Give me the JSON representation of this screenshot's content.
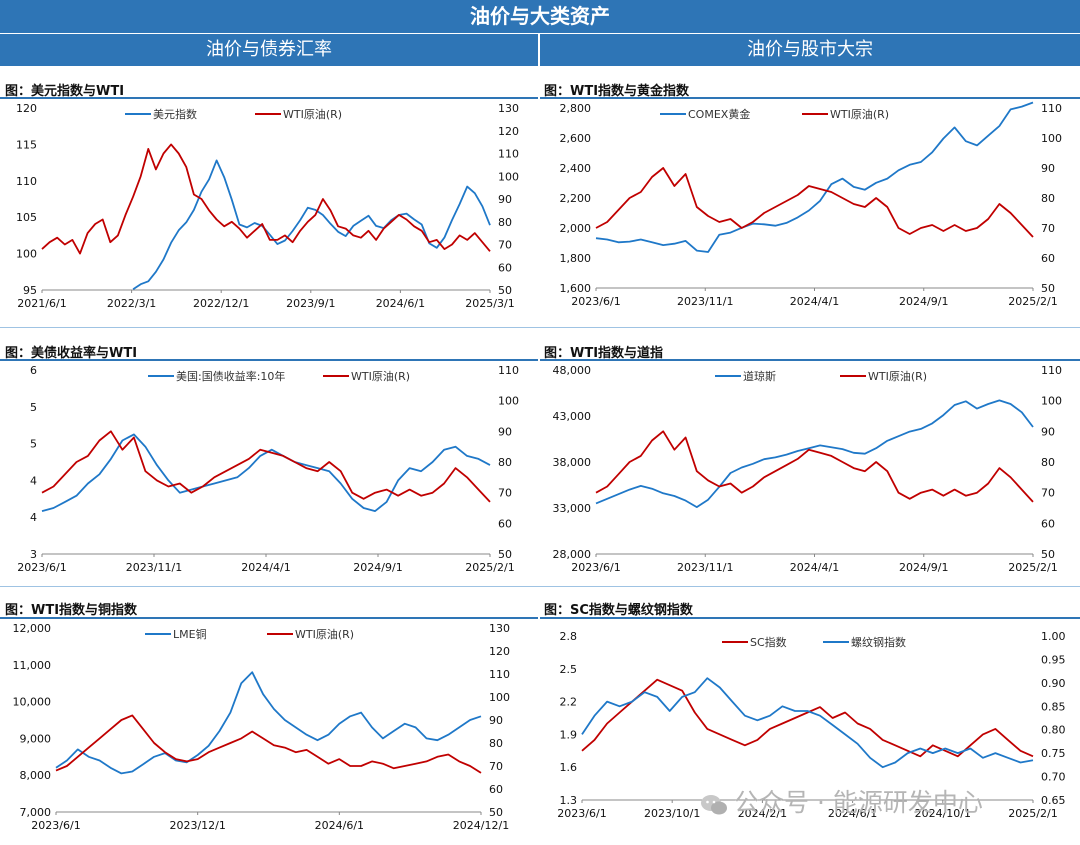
{
  "banner": "油价与大类资产",
  "sections": {
    "left": "油价与债券汇率",
    "right": "油价与股市大宗"
  },
  "watermark": "公众号 · 能源研发中心",
  "colors": {
    "header": "#2e75b6",
    "blue_series": "#1f78c8",
    "red_series": "#c00000"
  },
  "chart_data": [
    {
      "type": "line",
      "title": "图：美元指数与WTI",
      "x_tick_labels": [
        "2021/6/1",
        "2022/3/1",
        "2022/12/1",
        "2023/9/1",
        "2024/6/1",
        "2025/3/1"
      ],
      "y_left": {
        "range": [
          95,
          120
        ],
        "ticks": [
          "95",
          "100",
          "105",
          "110",
          "115",
          "120"
        ]
      },
      "y_right": {
        "range": [
          50,
          130
        ],
        "ticks": [
          "50",
          "60",
          "70",
          "80",
          "90",
          "100",
          "110",
          "120",
          "130"
        ]
      },
      "series": [
        {
          "name": "美元指数",
          "axis": "left",
          "color": "#1f78c8",
          "values": [
            null,
            null,
            null,
            null,
            null,
            null,
            null,
            null,
            null,
            null,
            null,
            null,
            95.1,
            95.8,
            96.2,
            97.5,
            99.2,
            101.5,
            103.2,
            104.3,
            106.0,
            108.5,
            110.2,
            112.8,
            110.5,
            107.4,
            104.0,
            103.6,
            104.2,
            103.8,
            102.6,
            101.3,
            101.8,
            103.1,
            104.6,
            106.3,
            106.0,
            105.3,
            104.1,
            103.0,
            102.4,
            103.8,
            104.5,
            105.2,
            103.8,
            103.5,
            104.6,
            105.3,
            105.5,
            104.7,
            104.0,
            101.4,
            100.8,
            102.2,
            104.6,
            106.8,
            109.2,
            108.3,
            106.5,
            103.9
          ]
        },
        {
          "name": "WTI原油(R)",
          "axis": "right",
          "color": "#c00000",
          "values": [
            68,
            71,
            73,
            70,
            72,
            66,
            75,
            79,
            81,
            71,
            74,
            83,
            91,
            100,
            112,
            103,
            110,
            114,
            110,
            104,
            92,
            90,
            85,
            81,
            78,
            80,
            77,
            73,
            76,
            79,
            72,
            72,
            74,
            71,
            76,
            80,
            83,
            90,
            85,
            78,
            77,
            74,
            73,
            76,
            72,
            77,
            80,
            83,
            81,
            78,
            76,
            71,
            72,
            68,
            70,
            74,
            72,
            75,
            71,
            67
          ]
        }
      ]
    },
    {
      "type": "line",
      "title": "图：WTI指数与黄金指数",
      "x_tick_labels": [
        "2023/6/1",
        "2023/11/1",
        "2024/4/1",
        "2024/9/1",
        "2025/2/1"
      ],
      "y_left": {
        "range": [
          1600,
          2900
        ],
        "ticks": [
          "1,600",
          "1,800",
          "2,000",
          "2,200",
          "2,400",
          "2,600",
          "2,800"
        ]
      },
      "y_right": {
        "range": [
          50,
          110
        ],
        "ticks": [
          "50",
          "60",
          "70",
          "80",
          "90",
          "100",
          "110"
        ]
      },
      "series": [
        {
          "name": "COMEX黄金",
          "axis": "left",
          "color": "#1f78c8",
          "values": [
            1960,
            1950,
            1930,
            1935,
            1950,
            1930,
            1910,
            1920,
            1940,
            1870,
            1860,
            1985,
            2000,
            2035,
            2065,
            2060,
            2050,
            2070,
            2110,
            2160,
            2230,
            2350,
            2390,
            2330,
            2310,
            2360,
            2390,
            2450,
            2490,
            2510,
            2580,
            2680,
            2760,
            2660,
            2630,
            2700,
            2770,
            2890,
            2910,
            2940
          ]
        },
        {
          "name": "WTI原油(R)",
          "axis": "right",
          "color": "#c00000",
          "values": [
            70,
            72,
            76,
            80,
            82,
            87,
            90,
            84,
            88,
            77,
            74,
            72,
            73,
            70,
            72,
            75,
            77,
            79,
            81,
            84,
            83,
            82,
            80,
            78,
            77,
            80,
            77,
            70,
            68,
            70,
            71,
            69,
            71,
            69,
            70,
            73,
            78,
            75,
            71,
            67
          ]
        }
      ]
    },
    {
      "type": "line",
      "title": "图：美债收益率与WTI",
      "x_tick_labels": [
        "2023/6/1",
        "2023/11/1",
        "2024/4/1",
        "2024/9/1",
        "2025/2/1"
      ],
      "y_left": {
        "range": [
          3,
          6
        ],
        "ticks": [
          "3",
          "4",
          "4",
          "5",
          "5",
          "6"
        ]
      },
      "y_right": {
        "range": [
          50,
          110
        ],
        "ticks": [
          "50",
          "60",
          "70",
          "80",
          "90",
          "100",
          "110"
        ]
      },
      "series": [
        {
          "name": "美国:国债收益率:10年",
          "axis": "left",
          "color": "#1f78c8",
          "values": [
            3.7,
            3.75,
            3.85,
            3.95,
            4.15,
            4.3,
            4.55,
            4.85,
            4.95,
            4.75,
            4.45,
            4.2,
            4.0,
            4.05,
            4.1,
            4.15,
            4.2,
            4.25,
            4.4,
            4.6,
            4.7,
            4.6,
            4.5,
            4.45,
            4.4,
            4.35,
            4.15,
            3.9,
            3.75,
            3.7,
            3.85,
            4.2,
            4.4,
            4.35,
            4.5,
            4.7,
            4.75,
            4.6,
            4.55,
            4.45
          ]
        },
        {
          "name": "WTI原油(R)",
          "axis": "right",
          "color": "#c00000",
          "values": [
            70,
            72,
            76,
            80,
            82,
            87,
            90,
            84,
            88,
            77,
            74,
            72,
            73,
            70,
            72,
            75,
            77,
            79,
            81,
            84,
            83,
            82,
            80,
            78,
            77,
            80,
            77,
            70,
            68,
            70,
            71,
            69,
            71,
            69,
            70,
            73,
            78,
            75,
            71,
            67
          ]
        }
      ]
    },
    {
      "type": "line",
      "title": "图：WTI指数与道指",
      "x_tick_labels": [
        "2023/6/1",
        "2023/11/1",
        "2024/4/1",
        "2024/9/1",
        "2025/2/1"
      ],
      "y_left": {
        "range": [
          28000,
          48000
        ],
        "ticks": [
          "28,000",
          "33,000",
          "38,000",
          "43,000",
          "48,000"
        ]
      },
      "y_right": {
        "range": [
          50,
          110
        ],
        "ticks": [
          "50",
          "60",
          "70",
          "80",
          "90",
          "100",
          "110"
        ]
      },
      "series": [
        {
          "name": "道琼斯",
          "axis": "left",
          "color": "#1f78c8",
          "values": [
            33500,
            34000,
            34500,
            35000,
            35400,
            35100,
            34600,
            34300,
            33800,
            33100,
            33900,
            35300,
            36800,
            37400,
            37800,
            38300,
            38500,
            38800,
            39200,
            39500,
            39800,
            39600,
            39400,
            39000,
            38900,
            39500,
            40300,
            40800,
            41300,
            41600,
            42200,
            43100,
            44200,
            44600,
            43800,
            44300,
            44700,
            44300,
            43400,
            41800
          ]
        },
        {
          "name": "WTI原油(R)",
          "axis": "right",
          "color": "#c00000",
          "values": [
            70,
            72,
            76,
            80,
            82,
            87,
            90,
            84,
            88,
            77,
            74,
            72,
            73,
            70,
            72,
            75,
            77,
            79,
            81,
            84,
            83,
            82,
            80,
            78,
            77,
            80,
            77,
            70,
            68,
            70,
            71,
            69,
            71,
            69,
            70,
            73,
            78,
            75,
            71,
            67
          ]
        }
      ]
    },
    {
      "type": "line",
      "title": "图：WTI指数与铜指数",
      "x_tick_labels": [
        "2023/6/1",
        "2023/12/1",
        "2024/6/1",
        "2024/12/1"
      ],
      "y_left": {
        "range": [
          7000,
          12000
        ],
        "ticks": [
          "7,000",
          "8,000",
          "9,000",
          "10,000",
          "11,000",
          "12,000"
        ]
      },
      "y_right": {
        "range": [
          50,
          130
        ],
        "ticks": [
          "50",
          "60",
          "70",
          "80",
          "90",
          "100",
          "110",
          "120",
          "130"
        ]
      },
      "series": [
        {
          "name": "LME铜",
          "axis": "left",
          "color": "#1f78c8",
          "values": [
            8200,
            8400,
            8700,
            8500,
            8400,
            8200,
            8050,
            8100,
            8300,
            8500,
            8600,
            8400,
            8350,
            8550,
            8800,
            9200,
            9700,
            10500,
            10800,
            10200,
            9800,
            9500,
            9300,
            9100,
            8950,
            9100,
            9400,
            9600,
            9700,
            9300,
            9000,
            9200,
            9400,
            9300,
            9000,
            8950,
            9100,
            9300,
            9500,
            9600
          ]
        },
        {
          "name": "WTI原油(R)",
          "axis": "right",
          "color": "#c00000",
          "values": [
            68,
            70,
            74,
            78,
            82,
            86,
            90,
            92,
            86,
            80,
            76,
            73,
            72,
            73,
            76,
            78,
            80,
            82,
            85,
            82,
            79,
            78,
            76,
            77,
            74,
            71,
            73,
            70,
            70,
            72,
            71,
            69,
            70,
            71,
            72,
            74,
            75,
            72,
            70,
            67
          ]
        }
      ]
    },
    {
      "type": "line",
      "title": "图：SC指数与螺纹钢指数",
      "x_tick_labels": [
        "2023/6/1",
        "2023/10/1",
        "2024/2/1",
        "2024/6/1",
        "2024/10/1",
        "2025/2/1"
      ],
      "y_left": {
        "range": [
          1.3,
          2.8
        ],
        "ticks": [
          "1.3",
          "1.6",
          "1.9",
          "2.2",
          "2.5",
          "2.8"
        ]
      },
      "y_right": {
        "range": [
          0.65,
          1.0
        ],
        "ticks": [
          "0.65",
          "0.70",
          "0.75",
          "0.80",
          "0.85",
          "0.90",
          "0.95",
          "1.00"
        ]
      },
      "series": [
        {
          "name": "SC指数",
          "axis": "left",
          "color": "#c00000",
          "values": [
            1.75,
            1.85,
            2.0,
            2.1,
            2.2,
            2.3,
            2.4,
            2.35,
            2.3,
            2.1,
            1.95,
            1.9,
            1.85,
            1.8,
            1.85,
            1.95,
            2.0,
            2.05,
            2.1,
            2.15,
            2.05,
            2.1,
            2.0,
            1.95,
            1.85,
            1.8,
            1.75,
            1.7,
            1.8,
            1.75,
            1.7,
            1.8,
            1.9,
            1.95,
            1.85,
            1.75,
            1.7
          ]
        },
        {
          "name": "螺纹钢指数",
          "axis": "right",
          "color": "#1f78c8",
          "values": [
            0.79,
            0.83,
            0.86,
            0.85,
            0.86,
            0.88,
            0.87,
            0.84,
            0.87,
            0.88,
            0.91,
            0.89,
            0.86,
            0.83,
            0.82,
            0.83,
            0.85,
            0.84,
            0.84,
            0.83,
            0.81,
            0.79,
            0.77,
            0.74,
            0.72,
            0.73,
            0.75,
            0.76,
            0.75,
            0.76,
            0.75,
            0.76,
            0.74,
            0.75,
            0.74,
            0.73,
            0.735
          ]
        }
      ]
    }
  ]
}
